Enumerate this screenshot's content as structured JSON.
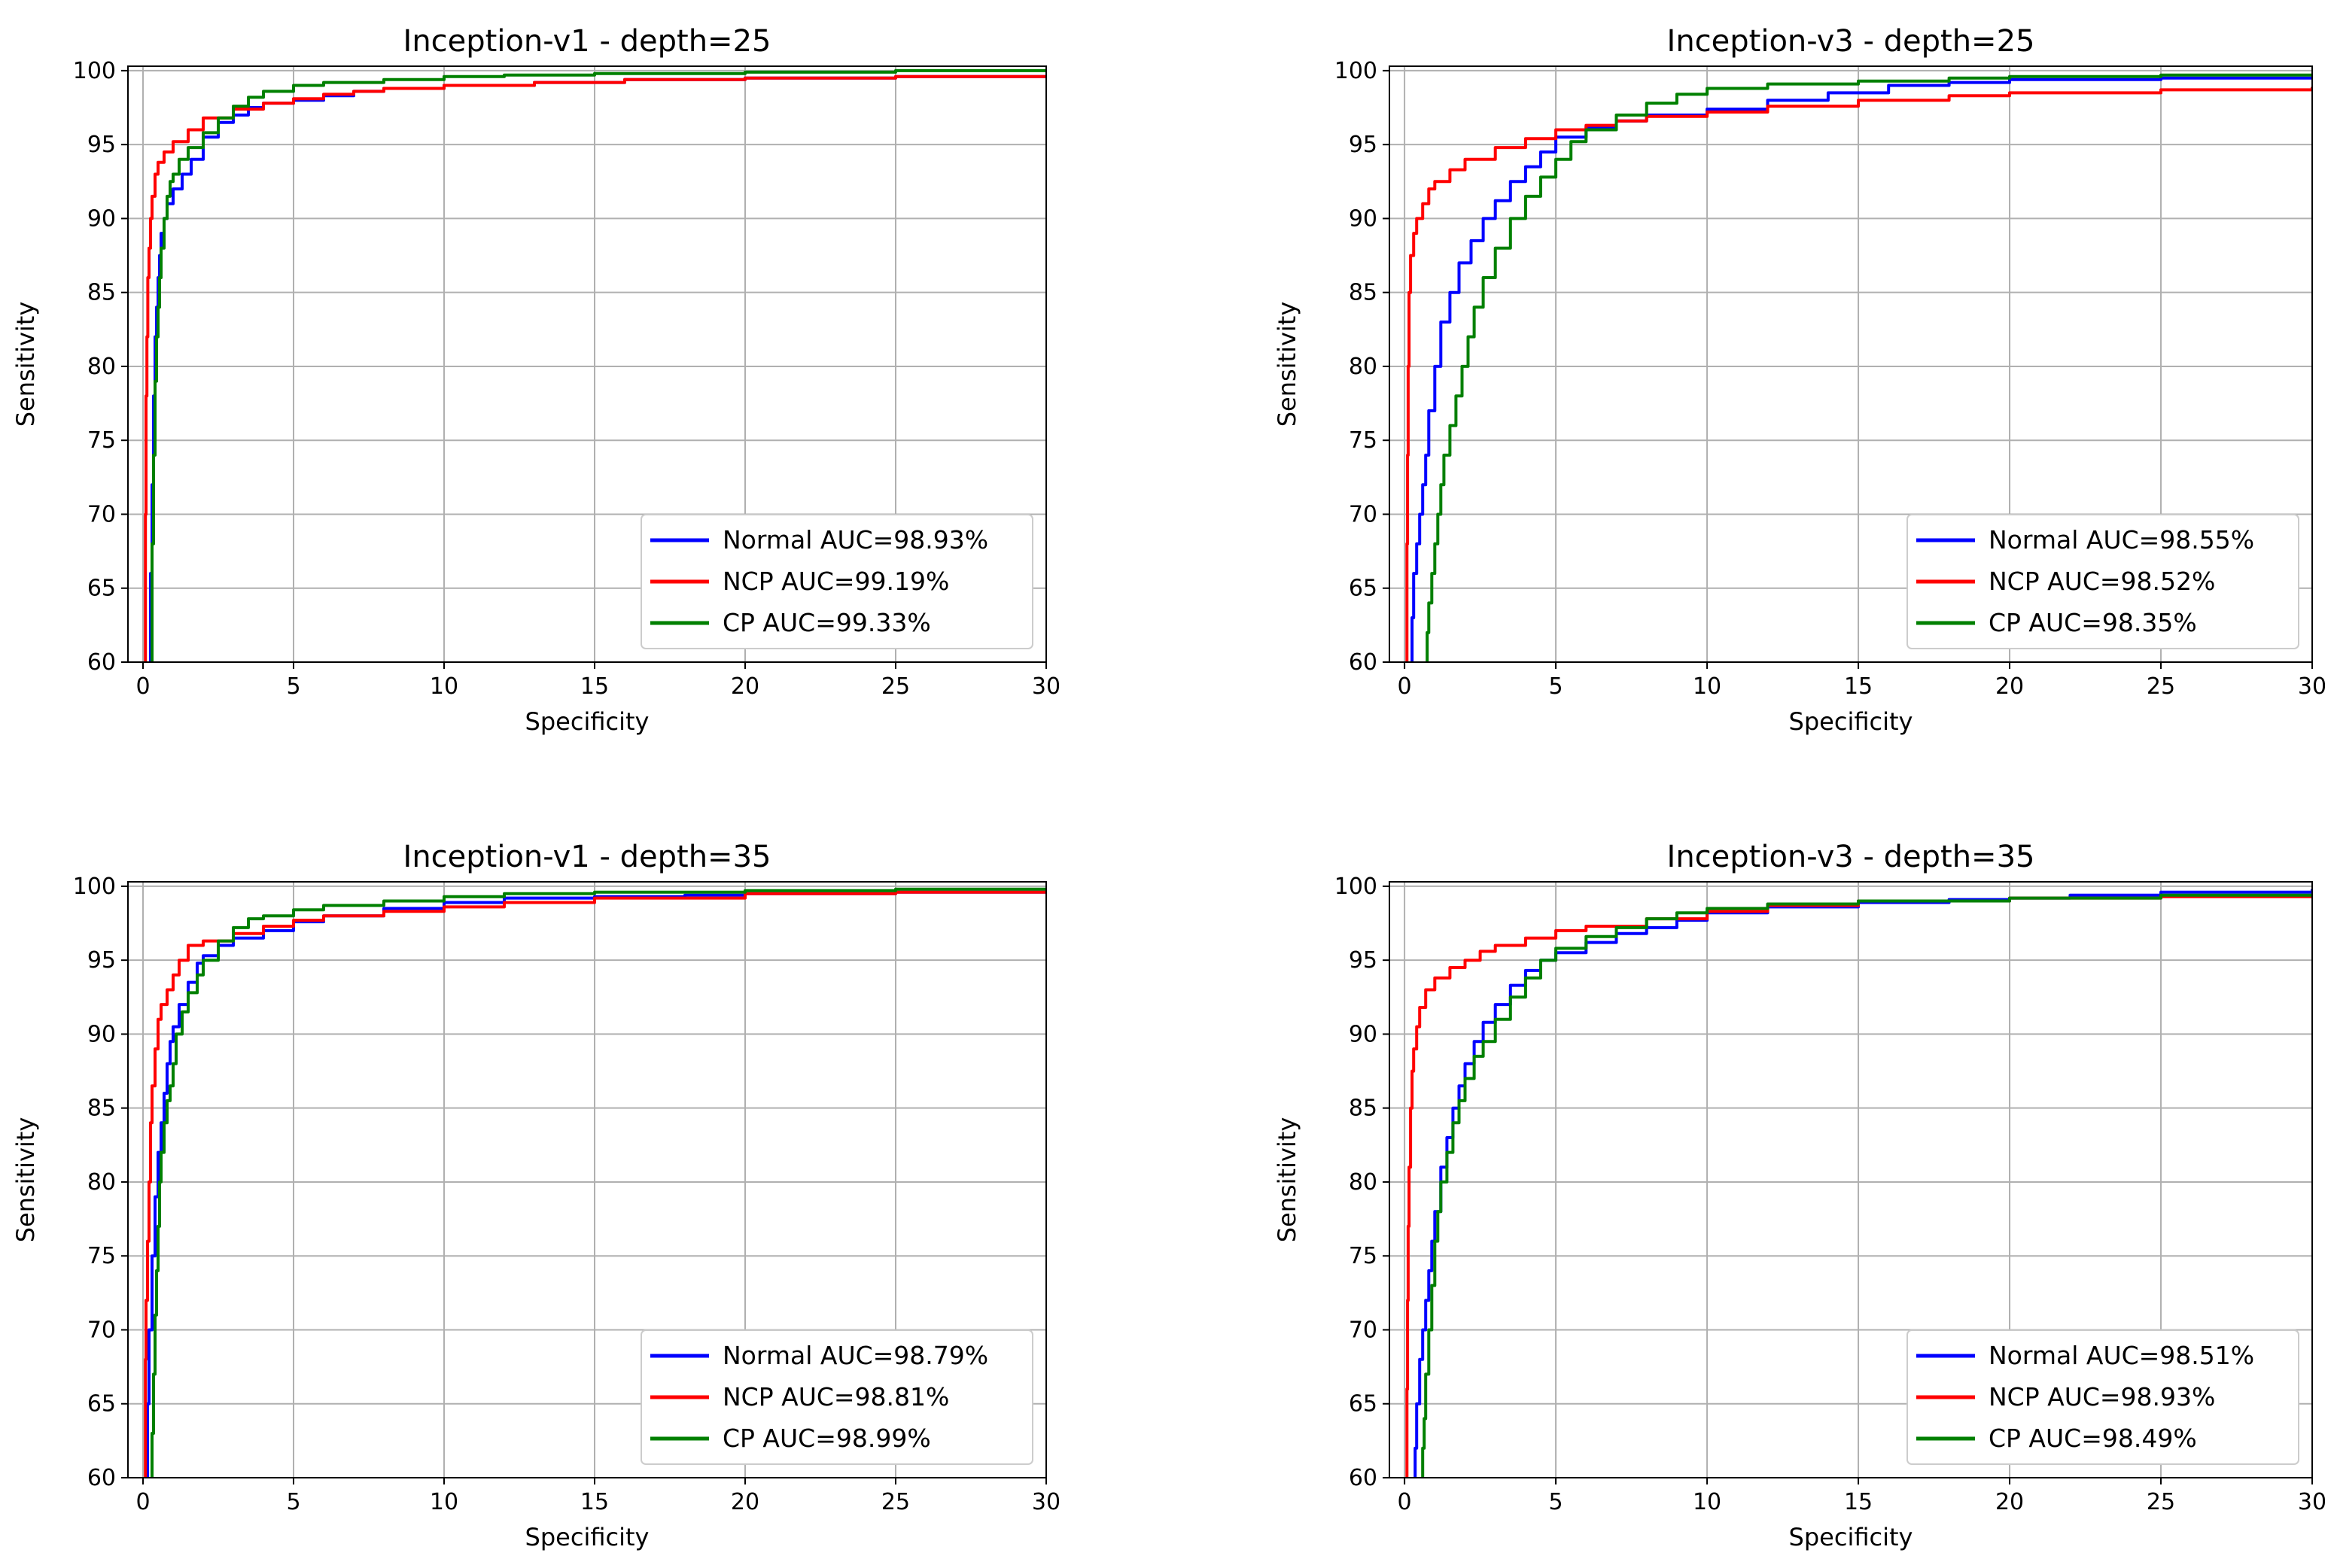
{
  "chart_data": [
    {
      "type": "line",
      "title": "Inception-v1 - depth=25",
      "xlabel": "Specificity",
      "ylabel": "Sensitivity",
      "xlim": [
        -0.5,
        30
      ],
      "ylim": [
        60,
        100.3
      ],
      "xticks": [
        0,
        5,
        10,
        15,
        20,
        25,
        30
      ],
      "yticks": [
        60,
        65,
        70,
        75,
        80,
        85,
        90,
        95,
        100
      ],
      "grid": true,
      "legend_position": "lower-right",
      "series": [
        {
          "name": "Normal AUC=98.93%",
          "color": "#0000ff",
          "x": [
            0.2,
            0.25,
            0.3,
            0.35,
            0.4,
            0.45,
            0.5,
            0.55,
            0.6,
            0.7,
            0.8,
            1.0,
            1.3,
            1.6,
            2.0,
            2.5,
            3.0,
            3.5,
            4.0,
            5.0,
            6.0,
            7.0,
            8.0,
            10.0,
            13.0,
            16.0,
            20.0,
            25.0,
            30.0
          ],
          "y": [
            60,
            66,
            72,
            78,
            82,
            84,
            86,
            87.5,
            89,
            90,
            91,
            92,
            93,
            94,
            95.5,
            96.5,
            97,
            97.5,
            97.8,
            98,
            98.3,
            98.6,
            98.8,
            99,
            99.2,
            99.4,
            99.5,
            99.6,
            99.7
          ]
        },
        {
          "name": "NCP AUC=99.19%",
          "color": "#ff0000",
          "x": [
            0.05,
            0.08,
            0.1,
            0.13,
            0.16,
            0.2,
            0.25,
            0.3,
            0.4,
            0.5,
            0.7,
            1.0,
            1.5,
            2.0,
            3.0,
            4.0,
            5.0,
            6.0,
            7.0,
            8.0,
            10.0,
            13.0,
            16.0,
            20.0,
            25.0,
            30.0
          ],
          "y": [
            60,
            70,
            78,
            82,
            86,
            88,
            90,
            91.5,
            93,
            93.8,
            94.5,
            95.2,
            96,
            96.8,
            97.4,
            97.8,
            98.1,
            98.4,
            98.6,
            98.8,
            99,
            99.2,
            99.4,
            99.5,
            99.6,
            99.7
          ]
        },
        {
          "name": "CP AUC=99.33%",
          "color": "#008000",
          "x": [
            0.25,
            0.3,
            0.35,
            0.4,
            0.45,
            0.5,
            0.55,
            0.6,
            0.7,
            0.8,
            0.9,
            1.0,
            1.2,
            1.5,
            2.0,
            2.5,
            3.0,
            3.5,
            4.0,
            5.0,
            6.0,
            8.0,
            10.0,
            12.0,
            15.0,
            20.0,
            25.0,
            30.0
          ],
          "y": [
            60,
            68,
            74,
            79,
            82,
            84,
            86,
            88,
            90,
            91.5,
            92.5,
            93,
            94,
            94.8,
            95.8,
            96.8,
            97.6,
            98.2,
            98.6,
            99,
            99.2,
            99.4,
            99.6,
            99.7,
            99.8,
            99.9,
            100,
            100
          ]
        }
      ]
    },
    {
      "type": "line",
      "title": "Inception-v3 - depth=25",
      "xlabel": "Specificity",
      "ylabel": "Sensitivity",
      "xlim": [
        -0.5,
        30
      ],
      "ylim": [
        60,
        100.3
      ],
      "xticks": [
        0,
        5,
        10,
        15,
        20,
        25,
        30
      ],
      "yticks": [
        60,
        65,
        70,
        75,
        80,
        85,
        90,
        95,
        100
      ],
      "grid": true,
      "legend_position": "lower-right",
      "series": [
        {
          "name": "Normal AUC=98.55%",
          "color": "#0000ff",
          "x": [
            0.2,
            0.25,
            0.3,
            0.4,
            0.5,
            0.6,
            0.7,
            0.8,
            1.0,
            1.2,
            1.5,
            1.8,
            2.2,
            2.6,
            3.0,
            3.5,
            4.0,
            4.5,
            5.0,
            6.0,
            7.0,
            8.0,
            10.0,
            12.0,
            14.0,
            16.0,
            18.0,
            20.0,
            25.0,
            30.0
          ],
          "y": [
            60,
            63,
            66,
            68,
            70,
            72,
            74,
            77,
            80,
            83,
            85,
            87,
            88.5,
            90,
            91.2,
            92.5,
            93.5,
            94.5,
            95.5,
            96.2,
            96.6,
            97,
            97.4,
            98,
            98.5,
            99,
            99.2,
            99.4,
            99.5,
            99.5
          ]
        },
        {
          "name": "NCP AUC=98.52%",
          "color": "#ff0000",
          "x": [
            0.05,
            0.08,
            0.1,
            0.12,
            0.15,
            0.2,
            0.3,
            0.4,
            0.6,
            0.8,
            1.0,
            1.5,
            2.0,
            3.0,
            4.0,
            5.0,
            6.0,
            7.0,
            8.0,
            10.0,
            12.0,
            15.0,
            18.0,
            20.0,
            25.0,
            30.0
          ],
          "y": [
            60,
            68,
            74,
            80,
            85,
            87.5,
            89,
            90,
            91,
            92,
            92.5,
            93.3,
            94,
            94.8,
            95.4,
            96,
            96.3,
            96.6,
            96.9,
            97.2,
            97.6,
            98,
            98.3,
            98.5,
            98.7,
            98.9
          ]
        },
        {
          "name": "CP AUC=98.35%",
          "color": "#008000",
          "x": [
            0.7,
            0.75,
            0.8,
            0.9,
            1.0,
            1.1,
            1.2,
            1.3,
            1.5,
            1.7,
            1.9,
            2.1,
            2.3,
            2.6,
            3.0,
            3.5,
            4.0,
            4.5,
            5.0,
            5.5,
            6.0,
            7.0,
            8.0,
            9.0,
            10.0,
            12.0,
            15.0,
            18.0,
            20.0,
            25.0,
            30.0
          ],
          "y": [
            60,
            62,
            64,
            66,
            68,
            70,
            72,
            74,
            76,
            78,
            80,
            82,
            84,
            86,
            88,
            90,
            91.5,
            92.8,
            94,
            95.2,
            96,
            97,
            97.8,
            98.4,
            98.8,
            99.1,
            99.3,
            99.5,
            99.6,
            99.7,
            99.7
          ]
        }
      ]
    },
    {
      "type": "line",
      "title": "Inception-v1 - depth=35",
      "xlabel": "Specificity",
      "ylabel": "Sensitivity",
      "xlim": [
        -0.5,
        30
      ],
      "ylim": [
        60,
        100.3
      ],
      "xticks": [
        0,
        5,
        10,
        15,
        20,
        25,
        30
      ],
      "yticks": [
        60,
        65,
        70,
        75,
        80,
        85,
        90,
        95,
        100
      ],
      "grid": true,
      "legend_position": "lower-right",
      "series": [
        {
          "name": "Normal AUC=98.79%",
          "color": "#0000ff",
          "x": [
            0.1,
            0.15,
            0.2,
            0.3,
            0.4,
            0.5,
            0.6,
            0.7,
            0.8,
            0.9,
            1.0,
            1.2,
            1.5,
            1.8,
            2.0,
            2.5,
            3.0,
            4.0,
            5.0,
            6.0,
            8.0,
            10.0,
            12.0,
            15.0,
            18.0,
            20.0,
            25.0,
            30.0
          ],
          "y": [
            60,
            65,
            70,
            75,
            79,
            82,
            84,
            86,
            88,
            89.5,
            90.5,
            92,
            93.5,
            94.8,
            95.3,
            96,
            96.5,
            97,
            97.6,
            98,
            98.5,
            98.9,
            99.2,
            99.3,
            99.4,
            99.5,
            99.6,
            99.7
          ]
        },
        {
          "name": "NCP AUC=98.81%",
          "color": "#ff0000",
          "x": [
            0.05,
            0.08,
            0.1,
            0.15,
            0.2,
            0.25,
            0.3,
            0.4,
            0.5,
            0.6,
            0.8,
            1.0,
            1.2,
            1.5,
            2.0,
            3.0,
            4.0,
            5.0,
            6.0,
            8.0,
            10.0,
            12.0,
            15.0,
            20.0,
            25.0,
            30.0
          ],
          "y": [
            60,
            68,
            72,
            76,
            80,
            84,
            86.5,
            89,
            91,
            92,
            93,
            94,
            95,
            96,
            96.3,
            96.8,
            97.3,
            97.7,
            98,
            98.3,
            98.6,
            98.9,
            99.2,
            99.5,
            99.6,
            99.7
          ]
        },
        {
          "name": "CP AUC=98.99%",
          "color": "#008000",
          "x": [
            0.25,
            0.3,
            0.35,
            0.4,
            0.45,
            0.5,
            0.55,
            0.6,
            0.7,
            0.8,
            0.9,
            1.0,
            1.1,
            1.3,
            1.5,
            1.8,
            2.0,
            2.5,
            3.0,
            3.5,
            4.0,
            5.0,
            6.0,
            8.0,
            10.0,
            12.0,
            15.0,
            20.0,
            25.0,
            30.0
          ],
          "y": [
            60,
            63,
            67,
            71,
            74,
            77,
            80,
            82,
            84,
            85.5,
            86.5,
            88,
            90,
            91.5,
            92.8,
            94,
            95,
            96.3,
            97.2,
            97.8,
            98,
            98.4,
            98.7,
            99,
            99.3,
            99.5,
            99.6,
            99.7,
            99.8,
            99.9
          ]
        }
      ]
    },
    {
      "type": "line",
      "title": "Inception-v3 - depth=35",
      "xlabel": "Specificity",
      "ylabel": "Sensitivity",
      "xlim": [
        -0.5,
        30
      ],
      "ylim": [
        60,
        100.3
      ],
      "xticks": [
        0,
        5,
        10,
        15,
        20,
        25,
        30
      ],
      "yticks": [
        60,
        65,
        70,
        75,
        80,
        85,
        90,
        95,
        100
      ],
      "grid": true,
      "legend_position": "lower-right",
      "series": [
        {
          "name": "Normal AUC=98.51%",
          "color": "#0000ff",
          "x": [
            0.3,
            0.35,
            0.4,
            0.5,
            0.6,
            0.7,
            0.8,
            0.9,
            1.0,
            1.2,
            1.4,
            1.6,
            1.8,
            2.0,
            2.3,
            2.6,
            3.0,
            3.5,
            4.0,
            4.5,
            5.0,
            6.0,
            7.0,
            8.0,
            9.0,
            10.0,
            12.0,
            15.0,
            18.0,
            20.0,
            22.0,
            25.0,
            30.0
          ],
          "y": [
            60,
            62,
            65,
            68,
            70,
            72,
            74,
            76,
            78,
            81,
            83,
            85,
            86.5,
            88,
            89.5,
            90.8,
            92,
            93.3,
            94.3,
            95,
            95.5,
            96.2,
            96.8,
            97.2,
            97.7,
            98.2,
            98.6,
            98.9,
            99.1,
            99.2,
            99.4,
            99.6,
            99.8
          ]
        },
        {
          "name": "NCP AUC=98.93%",
          "color": "#ff0000",
          "x": [
            0.05,
            0.08,
            0.1,
            0.12,
            0.15,
            0.2,
            0.25,
            0.3,
            0.4,
            0.5,
            0.7,
            1.0,
            1.5,
            2.0,
            2.5,
            3.0,
            4.0,
            5.0,
            6.0,
            8.0,
            10.0,
            12.0,
            15.0,
            20.0,
            25.0,
            30.0
          ],
          "y": [
            60,
            66,
            72,
            77,
            81,
            85,
            87.5,
            89,
            90.5,
            91.8,
            93,
            93.8,
            94.5,
            95,
            95.6,
            96,
            96.5,
            97,
            97.3,
            97.8,
            98.3,
            98.7,
            99,
            99.2,
            99.3,
            99.4
          ]
        },
        {
          "name": "CP AUC=98.49%",
          "color": "#008000",
          "x": [
            0.55,
            0.6,
            0.65,
            0.7,
            0.8,
            0.9,
            1.0,
            1.1,
            1.2,
            1.4,
            1.6,
            1.8,
            2.0,
            2.3,
            2.6,
            3.0,
            3.5,
            4.0,
            4.5,
            5.0,
            6.0,
            7.0,
            8.0,
            9.0,
            10.0,
            12.0,
            15.0,
            20.0,
            25.0,
            30.0
          ],
          "y": [
            60,
            62,
            64,
            67,
            70,
            73,
            76,
            78,
            80,
            82,
            84,
            85.5,
            87,
            88.5,
            89.5,
            91,
            92.5,
            93.8,
            95,
            95.8,
            96.6,
            97.2,
            97.8,
            98.2,
            98.5,
            98.8,
            99,
            99.2,
            99.4,
            99.5
          ]
        }
      ]
    }
  ]
}
